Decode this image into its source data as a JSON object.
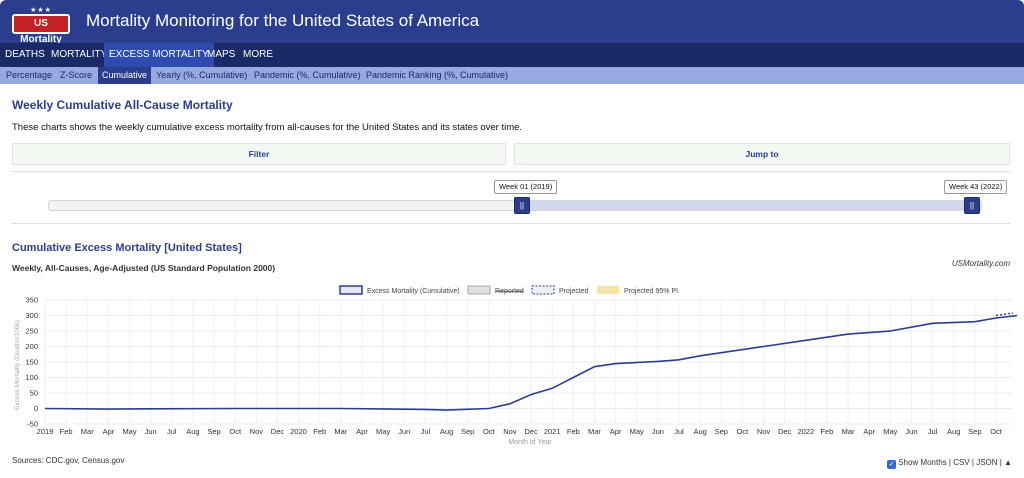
{
  "header": {
    "logo_text": "US Mortality",
    "logo_stars": "★★★",
    "title": "Mortality Monitoring for the United States of America"
  },
  "main_nav": [
    {
      "label": "DEATHS"
    },
    {
      "label": "MORTALITY"
    },
    {
      "label": "EXCESS MORTALITY",
      "active": true
    },
    {
      "label": "MAPS"
    },
    {
      "label": "MORE"
    }
  ],
  "sub_nav": [
    {
      "label": "Percentage"
    },
    {
      "label": "Z-Score"
    },
    {
      "label": "Cumulative",
      "active": true
    },
    {
      "label": "Yearly (%, Cumulative)"
    },
    {
      "label": "Pandemic (%, Cumulative)"
    },
    {
      "label": "Pandemic Ranking (%, Cumulative)"
    }
  ],
  "page": {
    "title": "Weekly Cumulative All-Cause Mortality",
    "description": "These charts shows the weekly cumulative excess mortality from all-causes for the United States and its states over time.",
    "filter_label": "Filter",
    "jump_label": "Jump to"
  },
  "range_slider": {
    "start_label": "Week 01 (2019)",
    "end_label": "Week 43 (2022)",
    "handle_glyph": "||"
  },
  "chart_section": {
    "title": "Cumulative Excess Mortality [United States]",
    "subtitle": "Weekly, All-Causes, Age-Adjusted (US Standard Population 2000)",
    "brand": "USMortality.com"
  },
  "chart_data": {
    "type": "line",
    "title": "",
    "xlabel": "Month of Year",
    "ylabel": "Excess Mortality (Deaths/100k)",
    "ylim": [
      -50,
      350
    ],
    "yticks": [
      350,
      300,
      250,
      200,
      150,
      100,
      50,
      0,
      -50
    ],
    "grid": true,
    "legend": [
      "Excess Mortality (Cumulative)",
      "Reported",
      "Projected",
      "Projected 95% PI"
    ],
    "legend_placement": "top-center",
    "colors": {
      "line": "#2b3e8e",
      "projected": "#2b3e8e",
      "pi": "#f5e6a8",
      "reported": "#e0e0e6"
    },
    "xtick_labels": [
      "2019",
      "Feb",
      "Mar",
      "Apr",
      "May",
      "Jun",
      "Jul",
      "Aug",
      "Sep",
      "Oct",
      "Nov",
      "Dec",
      "2020",
      "Feb",
      "Mar",
      "Apr",
      "May",
      "Jun",
      "Jul",
      "Aug",
      "Sep",
      "Oct",
      "Nov",
      "Dec",
      "2021",
      "Feb",
      "Mar",
      "Apr",
      "May",
      "Jun",
      "Jul",
      "Aug",
      "Sep",
      "Oct",
      "Nov",
      "Dec",
      "2022",
      "Feb",
      "Mar",
      "Apr",
      "May",
      "Jun",
      "Jul",
      "Aug",
      "Sep",
      "Oct"
    ],
    "x_months": [
      0,
      3,
      5,
      9,
      14,
      18,
      19,
      21,
      22,
      23,
      24,
      25,
      26,
      27,
      29,
      30,
      31,
      34,
      36,
      38,
      40,
      42,
      44,
      45,
      46
    ],
    "y_values": [
      0,
      -2,
      -1,
      0,
      0,
      -3,
      -5,
      0,
      15,
      45,
      65,
      100,
      135,
      145,
      152,
      157,
      170,
      200,
      220,
      240,
      250,
      275,
      280,
      292,
      300
    ],
    "projected_x": [
      45.0,
      45.8
    ],
    "projected_y": [
      300,
      308
    ]
  },
  "footer": {
    "sources": "Sources: CDC.gov, Census.gov",
    "checkbox_glyph": "✓",
    "show_months": "Show Months",
    "sep1": "|",
    "csv": "CSV",
    "sep2": "|",
    "json": "JSON",
    "sep3": "|",
    "top_arrow": "▲"
  }
}
